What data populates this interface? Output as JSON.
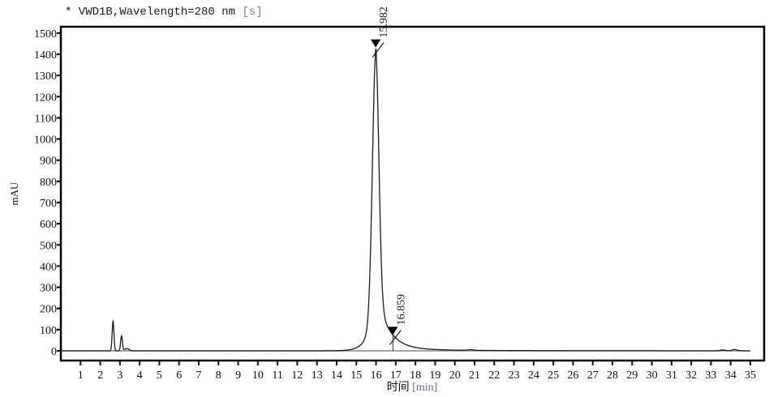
{
  "title": {
    "prefix": "* VWD1B,Wavelength=280 nm",
    "suffix": "[s]"
  },
  "chart_data": {
    "type": "line",
    "title": "* VWD1B,Wavelength=280 nm [s]",
    "xlabel": "时间",
    "xunit": "[min]",
    "ylabel": "mAU",
    "xlim": [
      0,
      35.7
    ],
    "ylim": [
      -46,
      1530
    ],
    "xticks": [
      1,
      2,
      3,
      4,
      5,
      6,
      7,
      8,
      9,
      10,
      11,
      12,
      13,
      14,
      15,
      16,
      17,
      18,
      19,
      20,
      21,
      22,
      23,
      24,
      25,
      26,
      27,
      28,
      29,
      30,
      31,
      32,
      33,
      34,
      35
    ],
    "yticks": [
      0,
      100,
      200,
      300,
      400,
      500,
      600,
      700,
      800,
      900,
      1000,
      1100,
      1200,
      1300,
      1400,
      1500
    ],
    "grid": false,
    "line_color": "#1a1a2a",
    "peaks": [
      {
        "rt": 2.65,
        "height": 140
      },
      {
        "rt": 3.08,
        "height": 70
      },
      {
        "rt": 3.35,
        "height": 10
      },
      {
        "rt": 15.982,
        "height": 1420,
        "label": "15.982"
      },
      {
        "rt": 16.859,
        "height": 80,
        "label": "16.859"
      },
      {
        "rt": 20.8,
        "height": 3
      },
      {
        "rt": 33.6,
        "height": 4
      },
      {
        "rt": 34.2,
        "height": 6
      }
    ],
    "peak_labels": [
      "15.982",
      "16.859"
    ]
  }
}
